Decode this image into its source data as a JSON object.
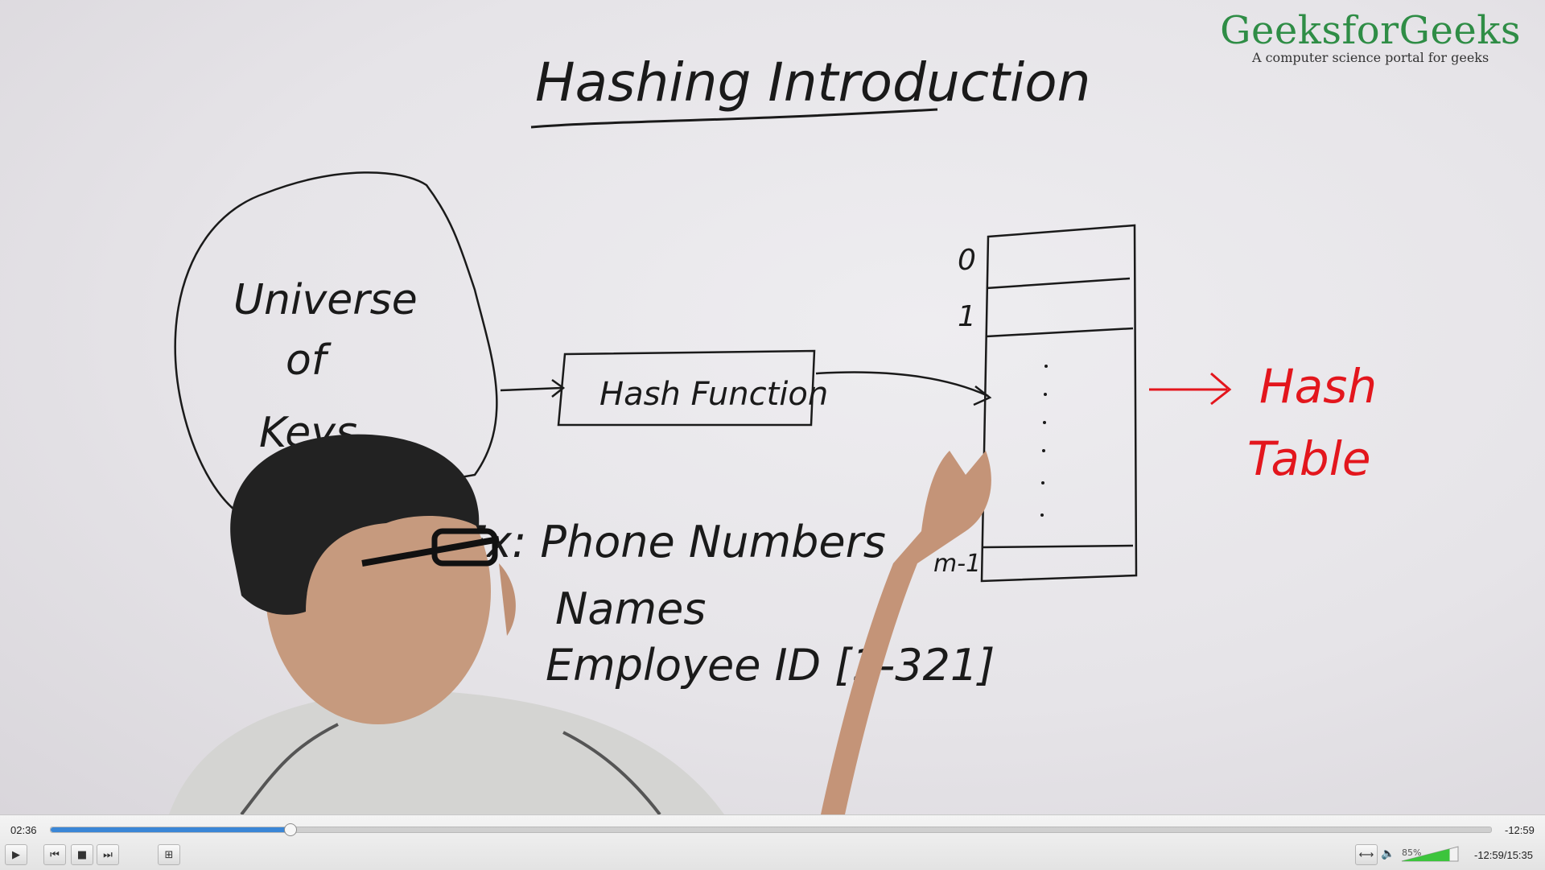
{
  "video": {
    "title": "Hashing Introduction",
    "board": {
      "universe_lines": [
        "Universe",
        "of",
        "Keys"
      ],
      "hash_function": "Hash Function",
      "table_indices": [
        "0",
        "1",
        "m-1"
      ],
      "hash_table_lines": [
        "Hash",
        "Table"
      ],
      "examples": [
        "Ex: Phone Numbers",
        "Names",
        "Employee ID [1-321]"
      ]
    },
    "watermark": {
      "brand": "GeeksforGeeks",
      "tagline": "A computer science portal for geeks"
    }
  },
  "player": {
    "elapsed": "02:36",
    "remaining": "-12:59",
    "status_time": "-12:59/15:35",
    "progress_fraction": 0.166,
    "volume_percent": "85%",
    "volume_fraction": 0.85,
    "accent_color": "#3a86d6",
    "volume_color": "#3cc43c",
    "icons": {
      "play": "play-icon",
      "prev": "skip-previous-icon",
      "stop": "stop-icon",
      "next": "skip-next-icon",
      "playlist": "playlist-icon",
      "aspect": "aspect-ratio-icon",
      "speaker": "speaker-icon"
    }
  }
}
